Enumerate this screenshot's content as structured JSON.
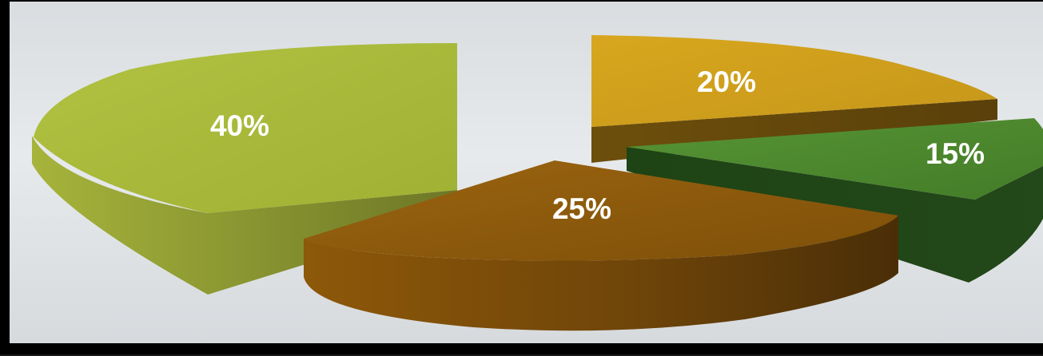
{
  "chart_data": {
    "type": "pie",
    "style": "3d-exploded",
    "title": "",
    "slices": [
      {
        "label": "40%",
        "value": 40,
        "color": "#a9ba3c"
      },
      {
        "label": "20%",
        "value": 20,
        "color": "#d2a11d"
      },
      {
        "label": "15%",
        "value": 15,
        "color": "#4e8a2f"
      },
      {
        "label": "25%",
        "value": 25,
        "color": "#8c5a0c"
      }
    ],
    "legend": "none"
  }
}
